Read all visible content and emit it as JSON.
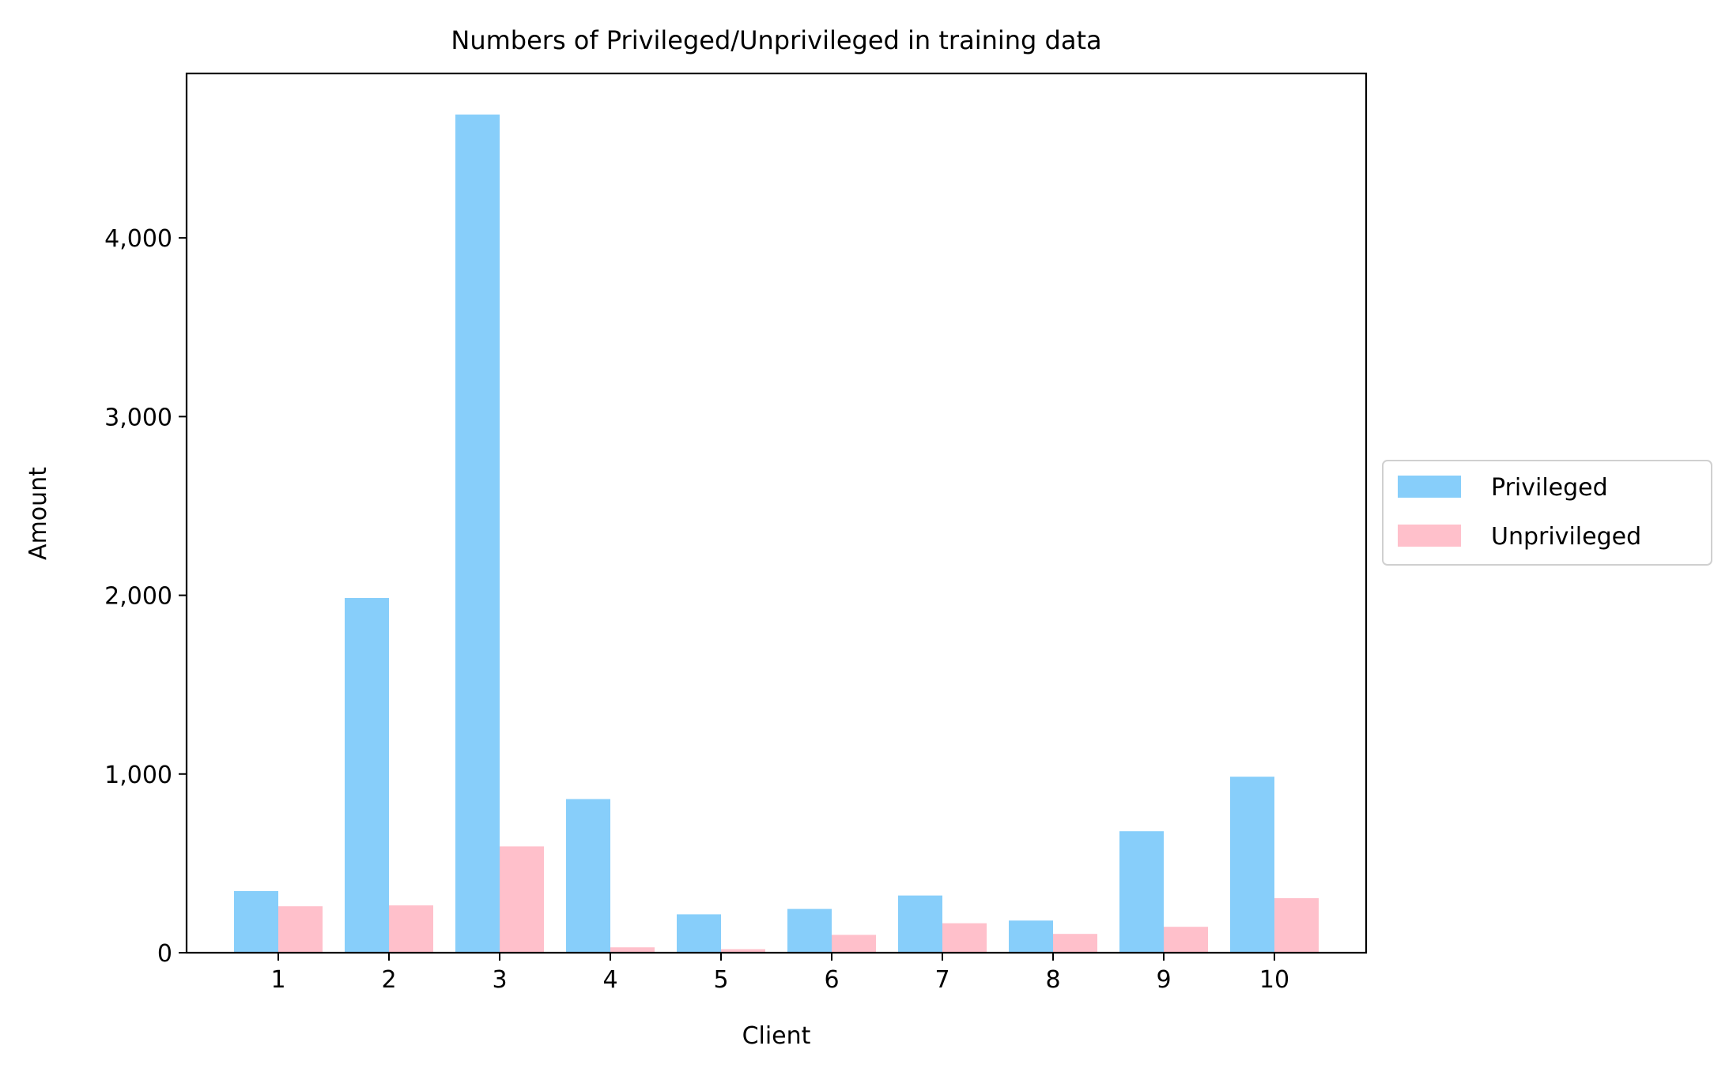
{
  "chart_data": {
    "type": "bar",
    "title": "Numbers of Privileged/Unprivileged in training data",
    "xlabel": "Client",
    "ylabel": "Amount",
    "categories": [
      "1",
      "2",
      "3",
      "4",
      "5",
      "6",
      "7",
      "8",
      "9",
      "10"
    ],
    "series": [
      {
        "name": "Privileged",
        "color": "#87CEFA",
        "values": [
          345,
          1985,
          4690,
          860,
          215,
          245,
          320,
          180,
          680,
          985
        ]
      },
      {
        "name": "Unprivileged",
        "color": "#FFC0CB",
        "values": [
          260,
          265,
          595,
          30,
          20,
          100,
          165,
          105,
          145,
          305
        ]
      }
    ],
    "ylim": [
      0,
      4920
    ],
    "yticks": [
      0,
      1000,
      2000,
      3000,
      4000
    ],
    "ytick_labels": [
      "0",
      "1,000",
      "2,000",
      "3,000",
      "4,000"
    ],
    "grid": false,
    "legend_position": "outside-right"
  }
}
